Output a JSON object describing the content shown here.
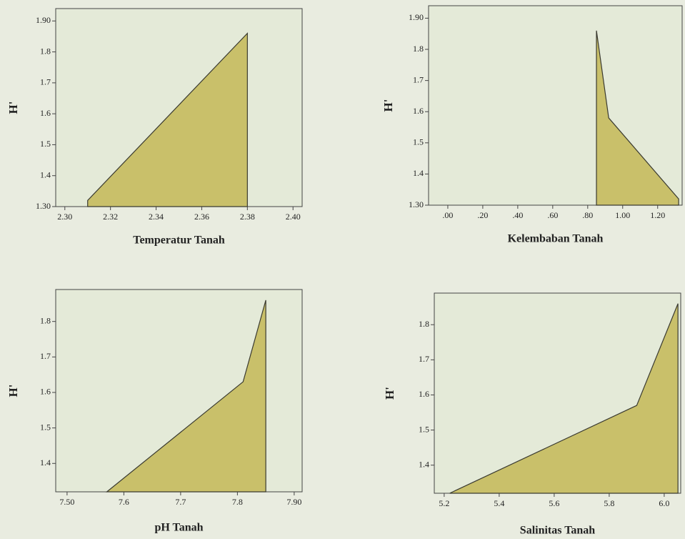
{
  "chart_data": [
    {
      "type": "area",
      "xlabel": "Temperatur Tanah",
      "ylabel": "H'",
      "color": "#c9c06a",
      "line_color": "#3a3a30",
      "x": [
        2.31,
        2.38
      ],
      "values": [
        1.32,
        1.86
      ],
      "xlim": [
        2.296,
        2.404
      ],
      "ylim": [
        1.3,
        1.94
      ],
      "xticks": [
        {
          "value": 2.3,
          "label": "2.30"
        },
        2.32,
        2.34,
        2.36,
        2.38,
        {
          "value": 2.4,
          "label": "2.40"
        }
      ],
      "yticks": [
        {
          "value": 1.3,
          "label": "1.30"
        },
        1.4,
        1.5,
        1.6,
        1.7,
        1.8,
        {
          "value": 1.9,
          "label": "1.90"
        }
      ]
    },
    {
      "type": "area",
      "xlabel": "Kelembaban Tanah",
      "ylabel": "H'",
      "color": "#c9c06a",
      "line_color": "#3a3a30",
      "x": [
        0.85,
        0.92,
        1.32
      ],
      "values": [
        1.86,
        1.58,
        1.32
      ],
      "xlim": [
        -0.11,
        1.34
      ],
      "ylim": [
        1.3,
        1.94
      ],
      "xticks": [
        {
          "value": 0,
          "label": ".00"
        },
        {
          "value": 0.2,
          "label": ".20"
        },
        {
          "value": 0.4,
          "label": ".40"
        },
        {
          "value": 0.6,
          "label": ".60"
        },
        {
          "value": 0.8,
          "label": ".80"
        },
        {
          "value": 1.0,
          "label": "1.00"
        },
        {
          "value": 1.2,
          "label": "1.20"
        }
      ],
      "yticks": [
        {
          "value": 1.3,
          "label": "1.30"
        },
        1.4,
        1.5,
        1.6,
        1.7,
        1.8,
        {
          "value": 1.9,
          "label": "1.90"
        }
      ]
    },
    {
      "type": "area",
      "xlabel": "pH Tanah",
      "ylabel": "H'",
      "color": "#c9c06a",
      "line_color": "#3a3a30",
      "x": [
        7.57,
        7.81,
        7.85
      ],
      "values": [
        1.32,
        1.63,
        1.86
      ],
      "xlim": [
        7.48,
        7.914
      ],
      "ylim": [
        1.32,
        1.89
      ],
      "xticks": [
        {
          "value": 7.5,
          "label": "7.50"
        },
        7.6,
        7.7,
        7.8,
        {
          "value": 7.9,
          "label": "7.90"
        }
      ],
      "yticks": [
        1.4,
        1.5,
        1.6,
        1.7,
        1.8
      ]
    },
    {
      "type": "area",
      "xlabel": "Salinitas Tanah",
      "ylabel": "H'",
      "color": "#c9c06a",
      "line_color": "#3a3a30",
      "x": [
        5.22,
        5.9,
        6.05
      ],
      "values": [
        1.32,
        1.57,
        1.86
      ],
      "xlim": [
        5.164,
        6.06
      ],
      "ylim": [
        1.32,
        1.89
      ],
      "xticks": [
        5.2,
        5.4,
        5.6,
        5.8,
        {
          "value": 6.0,
          "label": "6.0"
        }
      ],
      "yticks": [
        1.4,
        1.5,
        1.6,
        1.7,
        1.8
      ]
    }
  ]
}
